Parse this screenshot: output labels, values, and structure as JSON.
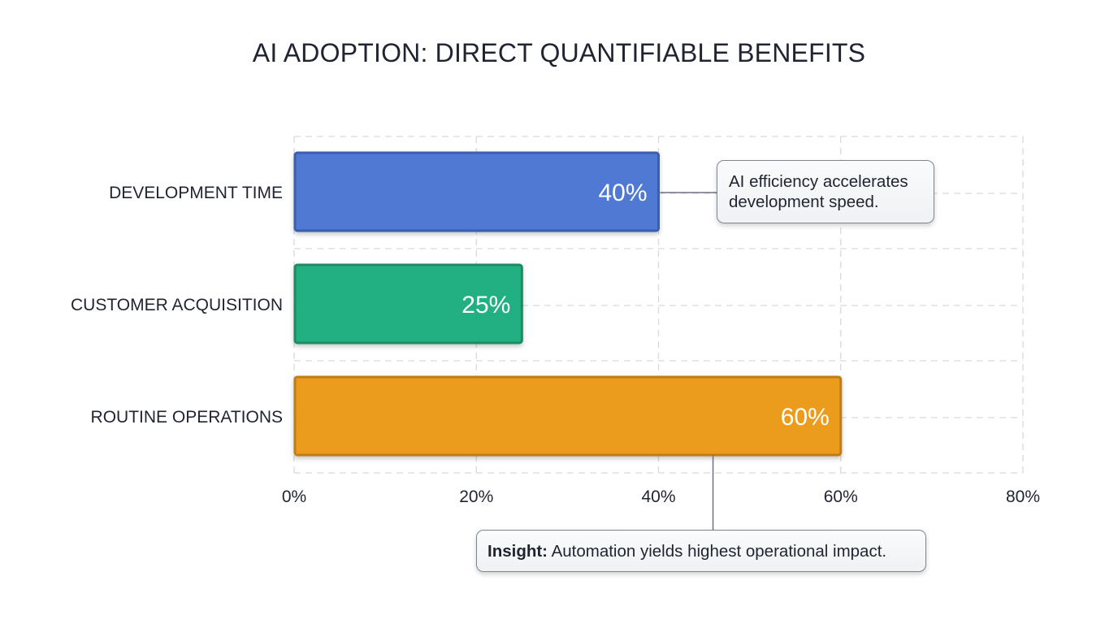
{
  "chart_data": {
    "type": "bar",
    "orientation": "horizontal",
    "title": "AI ADOPTION: DIRECT QUANTIFIABLE BENEFITS",
    "xlabel": "",
    "ylabel": "",
    "categories": [
      "DEVELOPMENT TIME",
      "CUSTOMER ACQUISITION",
      "ROUTINE OPERATIONS"
    ],
    "values": [
      40,
      25,
      60
    ],
    "value_labels": [
      "40%",
      "25%",
      "60%"
    ],
    "colors": [
      "#5079d2",
      "#22b082",
      "#ec9c1f"
    ],
    "border_colors": [
      "#3a5fae",
      "#1a8a64",
      "#c07c12"
    ],
    "xlim": [
      0,
      80
    ],
    "xticks": [
      0,
      20,
      40,
      60,
      80
    ],
    "xtick_labels": [
      "0%",
      "20%",
      "40%",
      "60%",
      "80%"
    ],
    "grid": true,
    "legend": "none",
    "annotations": [
      {
        "target": "DEVELOPMENT TIME",
        "text": "AI efficiency accelerates development speed.",
        "line1": "AI efficiency accelerates",
        "line2": "development speed.",
        "placement": "right-of-bar"
      },
      {
        "target": "ROUTINE OPERATIONS",
        "anchor_value": 45,
        "bold_prefix": "Insight:",
        "text": " Automation yields highest operational impact.",
        "placement": "below-axis"
      }
    ]
  }
}
